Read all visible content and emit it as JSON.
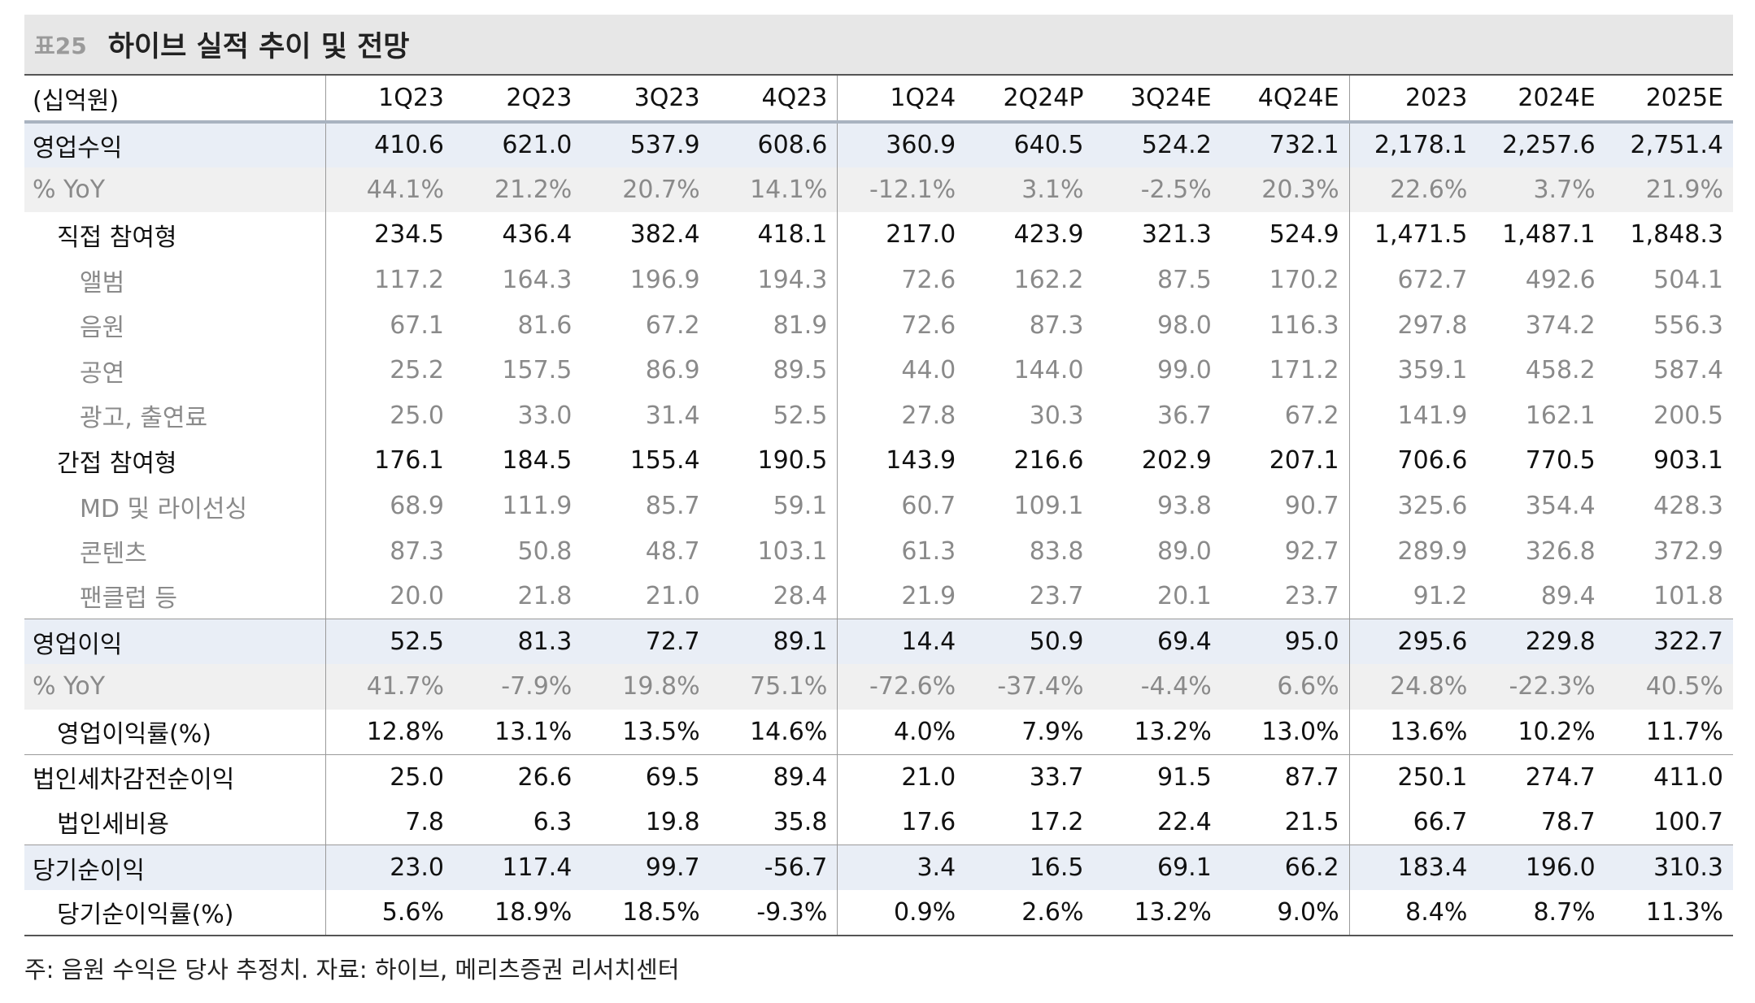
{
  "title": {
    "label": "표25",
    "text": "하이브 실적 추이 및 전망"
  },
  "table": {
    "unit_header": "(십억원)",
    "columns": [
      "1Q23",
      "2Q23",
      "3Q23",
      "4Q23",
      "1Q24",
      "2Q24P",
      "3Q24E",
      "4Q24E",
      "2023",
      "2024E",
      "2025E"
    ],
    "rows": [
      {
        "label": "영업수익",
        "style": "main",
        "indent": 0,
        "values": [
          "410.6",
          "621.0",
          "537.9",
          "608.6",
          "360.9",
          "640.5",
          "524.2",
          "732.1",
          "2,178.1",
          "2,257.6",
          "2,751.4"
        ]
      },
      {
        "label": "% YoY",
        "style": "yoy",
        "indent": 0,
        "values": [
          "44.1%",
          "21.2%",
          "20.7%",
          "14.1%",
          "-12.1%",
          "3.1%",
          "-2.5%",
          "20.3%",
          "22.6%",
          "3.7%",
          "21.9%"
        ]
      },
      {
        "label": "직접 참여형",
        "style": "sub1",
        "indent": 1,
        "values": [
          "234.5",
          "436.4",
          "382.4",
          "418.1",
          "217.0",
          "423.9",
          "321.3",
          "524.9",
          "1,471.5",
          "1,487.1",
          "1,848.3"
        ]
      },
      {
        "label": "앨범",
        "style": "sub2",
        "indent": 2,
        "values": [
          "117.2",
          "164.3",
          "196.9",
          "194.3",
          "72.6",
          "162.2",
          "87.5",
          "170.2",
          "672.7",
          "492.6",
          "504.1"
        ]
      },
      {
        "label": "음원",
        "style": "sub2",
        "indent": 2,
        "values": [
          "67.1",
          "81.6",
          "67.2",
          "81.9",
          "72.6",
          "87.3",
          "98.0",
          "116.3",
          "297.8",
          "374.2",
          "556.3"
        ]
      },
      {
        "label": "공연",
        "style": "sub2",
        "indent": 2,
        "values": [
          "25.2",
          "157.5",
          "86.9",
          "89.5",
          "44.0",
          "144.0",
          "99.0",
          "171.2",
          "359.1",
          "458.2",
          "587.4"
        ]
      },
      {
        "label": "광고, 출연료",
        "style": "sub2",
        "indent": 2,
        "values": [
          "25.0",
          "33.0",
          "31.4",
          "52.5",
          "27.8",
          "30.3",
          "36.7",
          "67.2",
          "141.9",
          "162.1",
          "200.5"
        ]
      },
      {
        "label": "간접 참여형",
        "style": "sub1",
        "indent": 1,
        "values": [
          "176.1",
          "184.5",
          "155.4",
          "190.5",
          "143.9",
          "216.6",
          "202.9",
          "207.1",
          "706.6",
          "770.5",
          "903.1"
        ]
      },
      {
        "label": "MD 및 라이선싱",
        "style": "sub2",
        "indent": 2,
        "values": [
          "68.9",
          "111.9",
          "85.7",
          "59.1",
          "60.7",
          "109.1",
          "93.8",
          "90.7",
          "325.6",
          "354.4",
          "428.3"
        ]
      },
      {
        "label": "콘텐츠",
        "style": "sub2",
        "indent": 2,
        "values": [
          "87.3",
          "50.8",
          "48.7",
          "103.1",
          "61.3",
          "83.8",
          "89.0",
          "92.7",
          "289.9",
          "326.8",
          "372.9"
        ]
      },
      {
        "label": "팬클럽 등",
        "style": "sub2",
        "indent": 2,
        "values": [
          "20.0",
          "21.8",
          "21.0",
          "28.4",
          "21.9",
          "23.7",
          "20.1",
          "23.7",
          "91.2",
          "89.4",
          "101.8"
        ]
      },
      {
        "label": "영업이익",
        "style": "main",
        "indent": 0,
        "topline": true,
        "values": [
          "52.5",
          "81.3",
          "72.7",
          "89.1",
          "14.4",
          "50.9",
          "69.4",
          "95.0",
          "295.6",
          "229.8",
          "322.7"
        ]
      },
      {
        "label": "% YoY",
        "style": "yoy",
        "indent": 0,
        "values": [
          "41.7%",
          "-7.9%",
          "19.8%",
          "75.1%",
          "-72.6%",
          "-37.4%",
          "-4.4%",
          "6.6%",
          "24.8%",
          "-22.3%",
          "40.5%"
        ]
      },
      {
        "label": "영업이익률(%)",
        "style": "sub1",
        "indent": 1,
        "values": [
          "12.8%",
          "13.1%",
          "13.5%",
          "14.6%",
          "4.0%",
          "7.9%",
          "13.2%",
          "13.0%",
          "13.6%",
          "10.2%",
          "11.7%"
        ]
      },
      {
        "label": "법인세차감전순이익",
        "style": "sub1",
        "indent": 0,
        "topline": true,
        "values": [
          "25.0",
          "26.6",
          "69.5",
          "89.4",
          "21.0",
          "33.7",
          "91.5",
          "87.7",
          "250.1",
          "274.7",
          "411.0"
        ]
      },
      {
        "label": "법인세비용",
        "style": "sub1",
        "indent": 1,
        "values": [
          "7.8",
          "6.3",
          "19.8",
          "35.8",
          "17.6",
          "17.2",
          "22.4",
          "21.5",
          "66.7",
          "78.7",
          "100.7"
        ]
      },
      {
        "label": "당기순이익",
        "style": "main",
        "indent": 0,
        "topline": true,
        "values": [
          "23.0",
          "117.4",
          "99.7",
          "-56.7",
          "3.4",
          "16.5",
          "69.1",
          "66.2",
          "183.4",
          "196.0",
          "310.3"
        ]
      },
      {
        "label": "당기순이익률(%)",
        "style": "sub1",
        "indent": 1,
        "values": [
          "5.6%",
          "18.9%",
          "18.5%",
          "-9.3%",
          "0.9%",
          "2.6%",
          "13.2%",
          "9.0%",
          "8.4%",
          "8.7%",
          "11.3%"
        ]
      }
    ]
  },
  "note": "주: 음원 수익은 당사 추정치. 자료: 하이브, 메리츠증권 리서치센터"
}
